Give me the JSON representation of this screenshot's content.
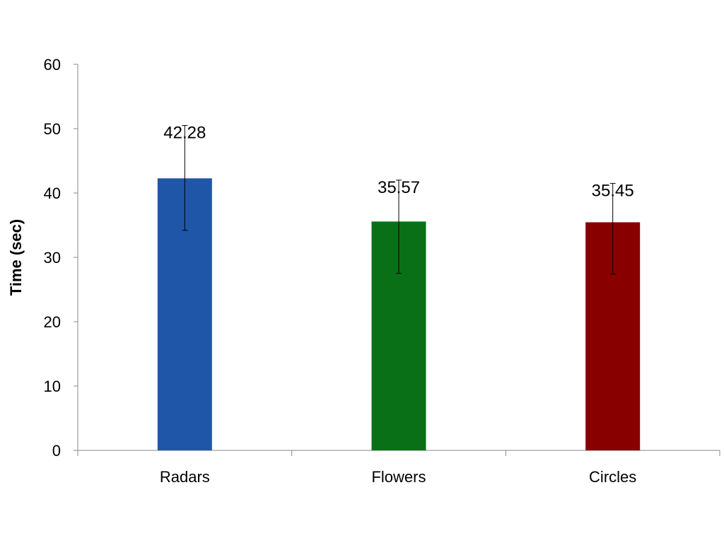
{
  "chart_data": {
    "type": "bar",
    "title": "",
    "xlabel": "",
    "ylabel": "Time (sec)",
    "ylim": [
      0,
      60
    ],
    "yticks": [
      0,
      10,
      20,
      30,
      40,
      50,
      60
    ],
    "grid": false,
    "categories": [
      "Radars",
      "Flowers",
      "Circles"
    ],
    "values": [
      42.28,
      35.57,
      35.45
    ],
    "data_labels": [
      "42.28",
      "35.57",
      "35.45"
    ],
    "error_low": [
      34.2,
      27.5,
      27.4
    ],
    "error_high": [
      50.5,
      42.0,
      41.5
    ],
    "colors": [
      "#1f56a8",
      "#0a7018",
      "#880000"
    ]
  }
}
